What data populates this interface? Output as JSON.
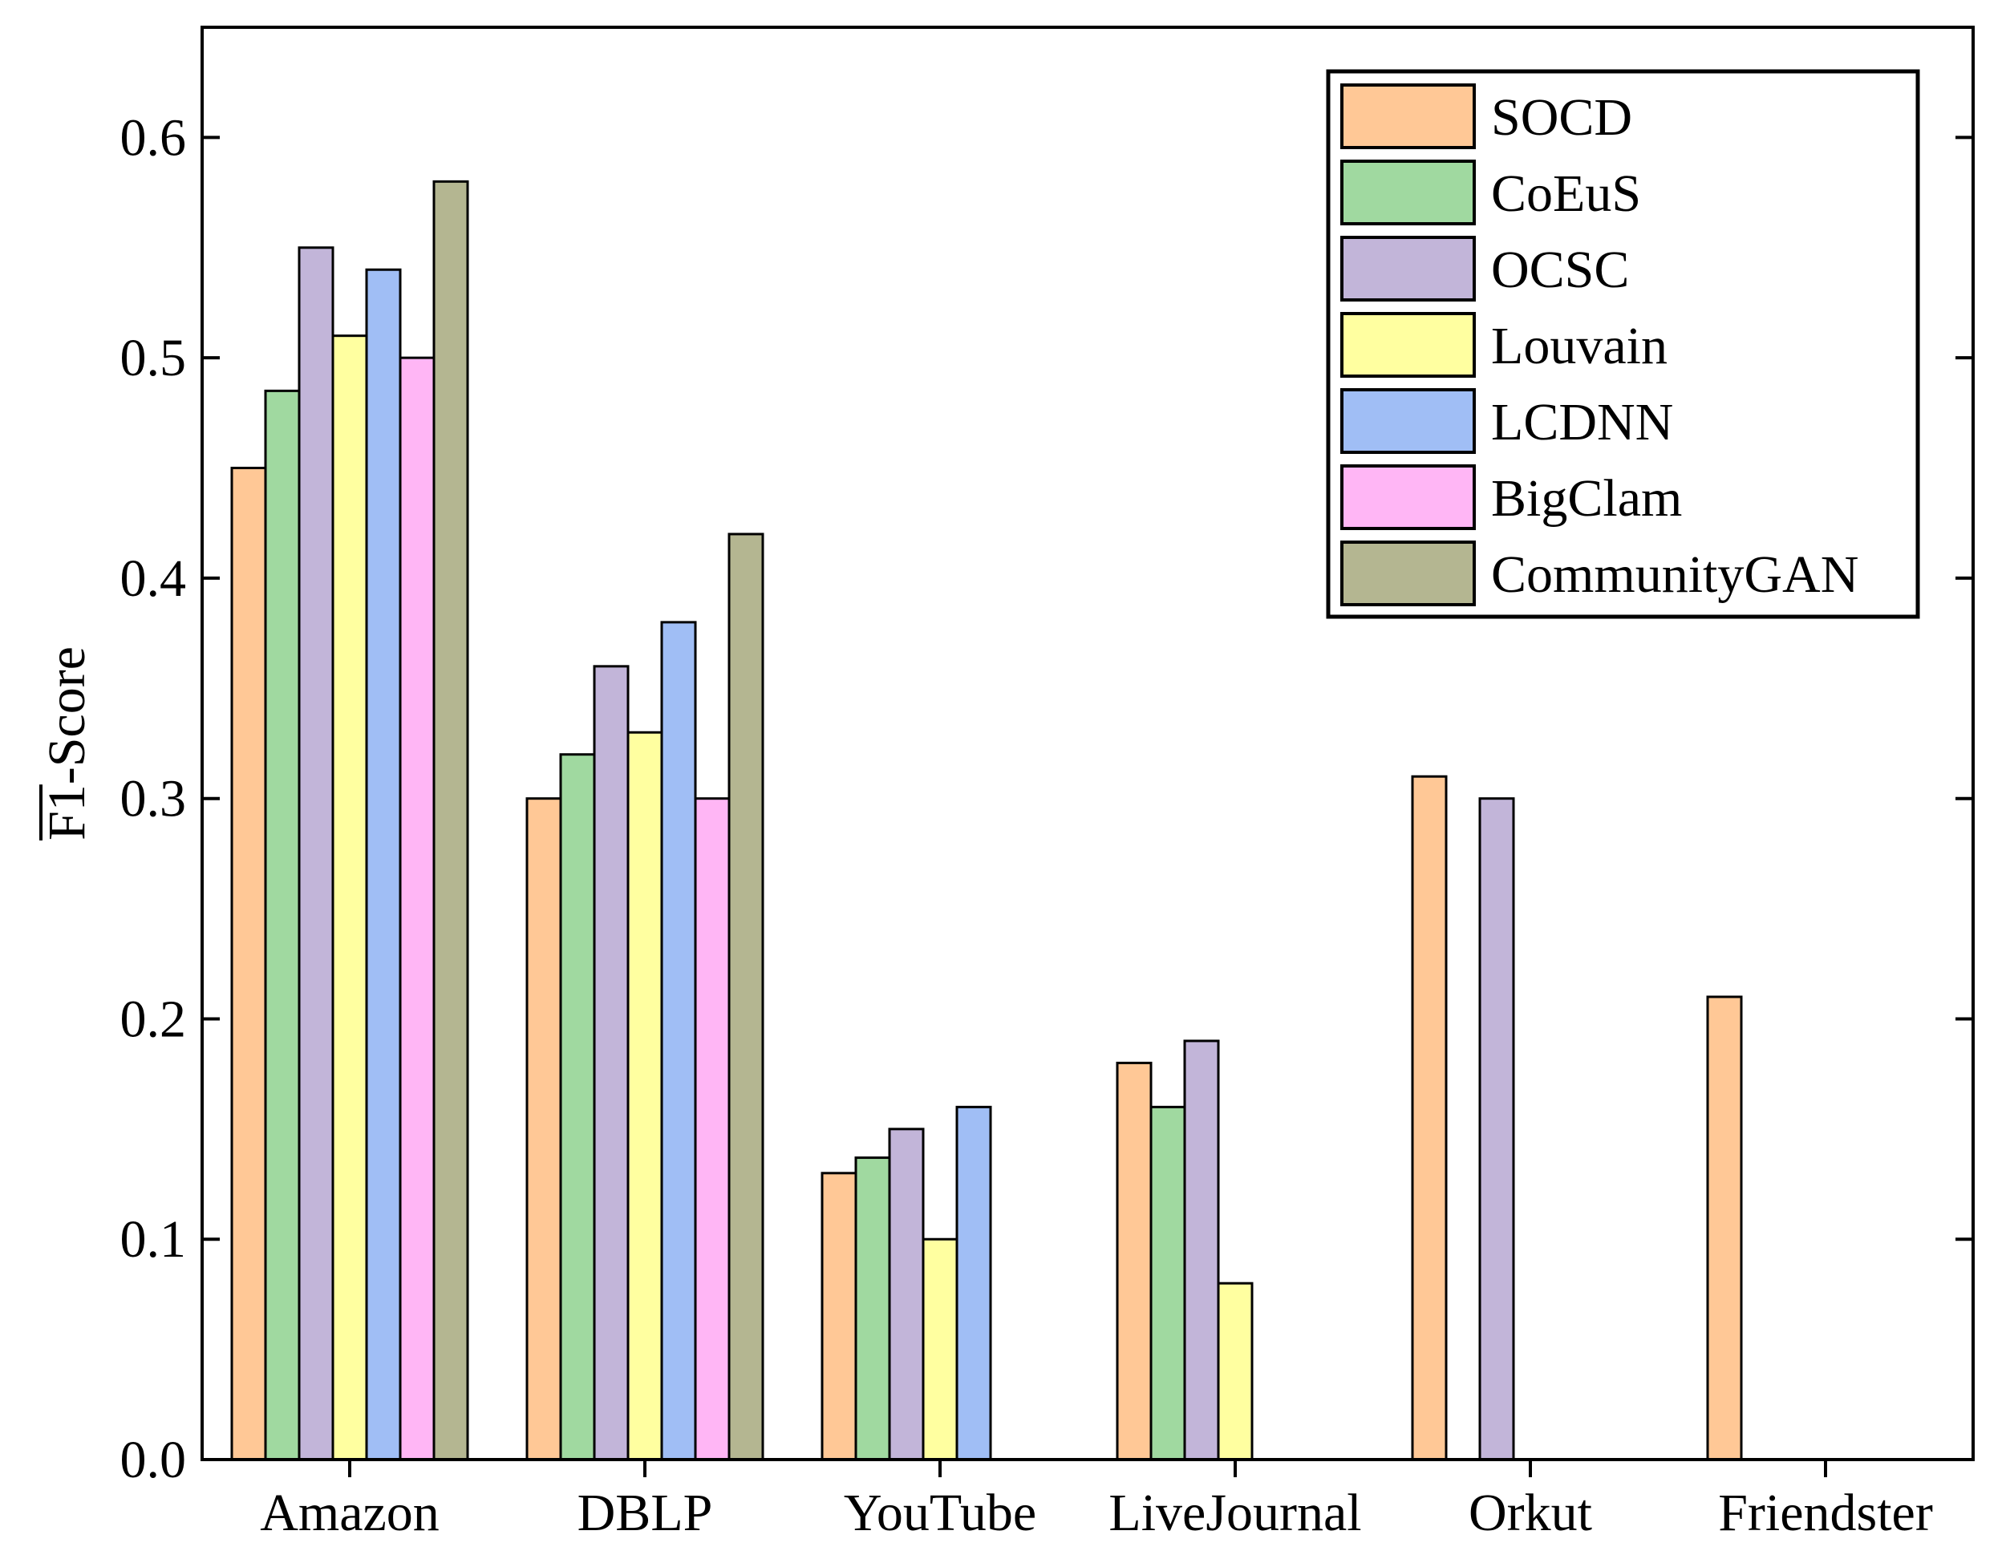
{
  "chart_data": {
    "type": "bar",
    "title": "",
    "xlabel": "",
    "ylabel": "F1-Score",
    "ylabel_overline": "F1",
    "ylim": [
      0.0,
      0.65
    ],
    "yticks": [
      "0.0",
      "0.1",
      "0.2",
      "0.3",
      "0.4",
      "0.5",
      "0.6"
    ],
    "categories": [
      "Amazon",
      "DBLP",
      "YouTube",
      "LiveJournal",
      "Orkut",
      "Friendster"
    ],
    "legend_position": "top-right",
    "grid": false,
    "series": [
      {
        "name": "SOCD",
        "color": "#FFC896",
        "values": [
          0.45,
          0.3,
          0.13,
          0.18,
          0.31,
          0.21
        ]
      },
      {
        "name": "CoEuS",
        "color": "#A0D9A0",
        "values": [
          0.485,
          0.32,
          0.137,
          0.16,
          null,
          null
        ]
      },
      {
        "name": "OCSC",
        "color": "#C2B5D9",
        "values": [
          0.55,
          0.36,
          0.15,
          0.19,
          0.3,
          null
        ]
      },
      {
        "name": "Louvain",
        "color": "#FFFFA0",
        "values": [
          0.51,
          0.33,
          0.1,
          0.08,
          null,
          null
        ]
      },
      {
        "name": "LCDNN",
        "color": "#A0BEF5",
        "values": [
          0.54,
          0.38,
          0.16,
          null,
          null,
          null
        ]
      },
      {
        "name": "BigClam",
        "color": "#FFB6F5",
        "values": [
          0.5,
          0.3,
          null,
          null,
          null,
          null
        ]
      },
      {
        "name": "CommunityGAN",
        "color": "#B4B691",
        "values": [
          0.58,
          0.42,
          null,
          null,
          null,
          null
        ]
      }
    ]
  }
}
